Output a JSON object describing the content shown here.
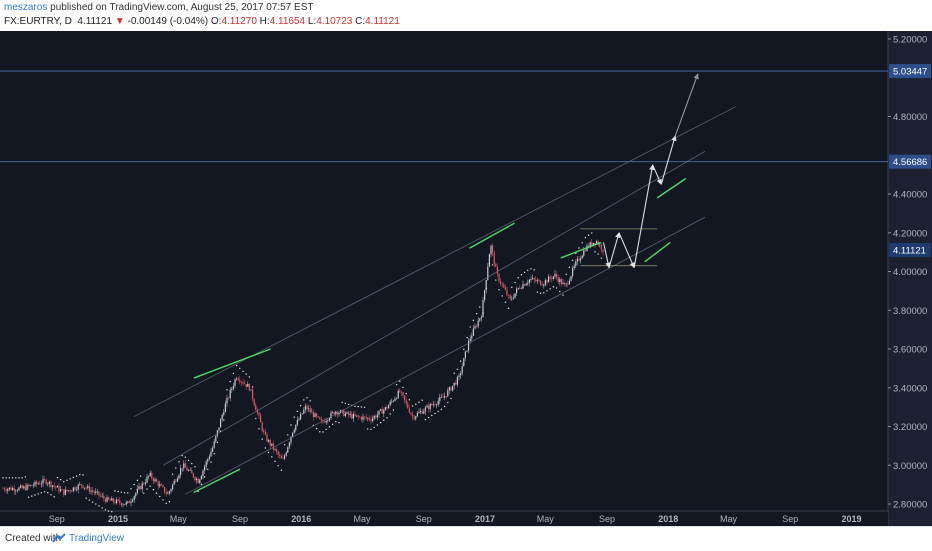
{
  "header": {
    "author": "meszaros",
    "published": "published on TradingView.com, August 25, 2017 07:57 EST",
    "symbol": "FX:EURTRY, D",
    "last": "4.11121",
    "arrow": "▼",
    "change": "-0.00149 (-0.04%)",
    "o_label": "O:",
    "o_value": "4.11270",
    "h_label": "H:",
    "h_value": "4.11654",
    "l_label": "L:",
    "l_value": "4.10723",
    "c_label": "C:",
    "c_value": "4.11121"
  },
  "footer": {
    "created_with": "Created with",
    "brand": "TradingView"
  },
  "colors": {
    "background": "#131722",
    "price_scale_bg": "#1c2030",
    "up_candle": "#c9cdd6",
    "down_candle": "#e05b66",
    "trendline_green": "#4cd964",
    "arrow_white": "#e8eaf0",
    "channel_gray": "#6b7280",
    "hline_blue": "#4a6ea8",
    "label_bg": "#2d4e8a"
  },
  "chart_data": {
    "type": "candlestick",
    "symbol": "FX:EURTRY",
    "interval": "D",
    "ylim": [
      2.8,
      5.2
    ],
    "y_ticks": [
      "5.20000",
      "4.80000",
      "4.40000",
      "4.20000",
      "4.00000",
      "3.80000",
      "3.60000",
      "3.40000",
      "3.20000",
      "3.00000",
      "2.80000"
    ],
    "x_ticks": [
      "Sep",
      "2015",
      "May",
      "Sep",
      "2016",
      "May",
      "Sep",
      "2017",
      "May",
      "Sep",
      "2018",
      "May",
      "Sep",
      "2019"
    ],
    "x_tick_dates": [
      "2014-09-01",
      "2015-01-01",
      "2015-05-01",
      "2015-09-01",
      "2016-01-01",
      "2016-05-01",
      "2016-09-01",
      "2017-01-01",
      "2017-05-01",
      "2017-09-01",
      "2018-01-01",
      "2018-05-01",
      "2018-09-01",
      "2019-01-01"
    ],
    "price_path": [
      [
        "2014-06-25",
        2.88
      ],
      [
        "2014-08-10",
        2.92
      ],
      [
        "2014-09-15",
        2.86
      ],
      [
        "2014-10-20",
        2.9
      ],
      [
        "2014-12-10",
        2.82
      ],
      [
        "2015-01-20",
        2.8
      ],
      [
        "2015-03-05",
        2.95
      ],
      [
        "2015-04-10",
        2.85
      ],
      [
        "2015-05-10",
        3.0
      ],
      [
        "2015-06-10",
        2.92
      ],
      [
        "2015-07-10",
        3.1
      ],
      [
        "2015-08-01",
        3.3
      ],
      [
        "2015-08-25",
        3.46
      ],
      [
        "2015-09-20",
        3.4
      ],
      [
        "2015-10-20",
        3.15
      ],
      [
        "2015-11-25",
        3.02
      ],
      [
        "2015-12-15",
        3.18
      ],
      [
        "2016-01-10",
        3.3
      ],
      [
        "2016-02-10",
        3.22
      ],
      [
        "2016-03-10",
        3.28
      ],
      [
        "2016-04-15",
        3.25
      ],
      [
        "2016-05-20",
        3.24
      ],
      [
        "2016-06-20",
        3.3
      ],
      [
        "2016-07-15",
        3.38
      ],
      [
        "2016-08-10",
        3.25
      ],
      [
        "2016-09-10",
        3.3
      ],
      [
        "2016-10-10",
        3.35
      ],
      [
        "2016-11-10",
        3.45
      ],
      [
        "2016-12-01",
        3.65
      ],
      [
        "2016-12-25",
        3.78
      ],
      [
        "2017-01-05",
        4.0
      ],
      [
        "2017-01-12",
        4.14
      ],
      [
        "2017-01-25",
        3.98
      ],
      [
        "2017-02-20",
        3.85
      ],
      [
        "2017-03-10",
        3.92
      ],
      [
        "2017-04-01",
        3.96
      ],
      [
        "2017-04-25",
        3.94
      ],
      [
        "2017-05-20",
        3.98
      ],
      [
        "2017-06-10",
        3.92
      ],
      [
        "2017-07-01",
        4.04
      ],
      [
        "2017-07-20",
        4.12
      ],
      [
        "2017-08-10",
        4.16
      ],
      [
        "2017-08-25",
        4.11
      ]
    ],
    "projection_path": [
      [
        "2017-08-25",
        4.15
      ],
      [
        "2017-09-05",
        4.02
      ],
      [
        "2017-09-25",
        4.2
      ],
      [
        "2017-10-25",
        4.02
      ],
      [
        "2017-12-01",
        4.55
      ],
      [
        "2017-12-18",
        4.45
      ],
      [
        "2018-01-15",
        4.7
      ],
      [
        "2018-03-01",
        5.02
      ]
    ],
    "horizontal_levels": [
      {
        "price": 5.03447,
        "label": "5.03447"
      },
      {
        "price": 4.56686,
        "label": "4.56686"
      }
    ],
    "current_price": {
      "price": 4.11121,
      "label": "4.11121"
    },
    "channel_lines": [
      {
        "from": [
          "2015-02-01",
          3.25
        ],
        "to": [
          "2018-05-15",
          4.85
        ]
      },
      {
        "from": [
          "2015-04-01",
          3.0
        ],
        "to": [
          "2018-03-15",
          4.62
        ]
      },
      {
        "from": [
          "2015-05-15",
          2.85
        ],
        "to": [
          "2018-03-15",
          4.28
        ]
      }
    ],
    "green_lines": [
      {
        "from": [
          "2015-06-01",
          3.45
        ],
        "to": [
          "2015-11-01",
          3.6
        ]
      },
      {
        "from": [
          "2015-06-01",
          2.86
        ],
        "to": [
          "2015-09-01",
          2.98
        ]
      },
      {
        "from": [
          "2016-12-01",
          4.12
        ],
        "to": [
          "2017-03-01",
          4.25
        ]
      },
      {
        "from": [
          "2017-06-01",
          4.07
        ],
        "to": [
          "2017-08-20",
          4.15
        ]
      },
      {
        "from": [
          "2017-11-15",
          4.05
        ],
        "to": [
          "2018-01-05",
          4.15
        ]
      },
      {
        "from": [
          "2017-12-10",
          4.38
        ],
        "to": [
          "2018-02-05",
          4.48
        ]
      }
    ],
    "range_box": {
      "from": "2017-07-10",
      "to": "2017-12-10",
      "top": 4.22,
      "bottom": 4.03
    }
  }
}
